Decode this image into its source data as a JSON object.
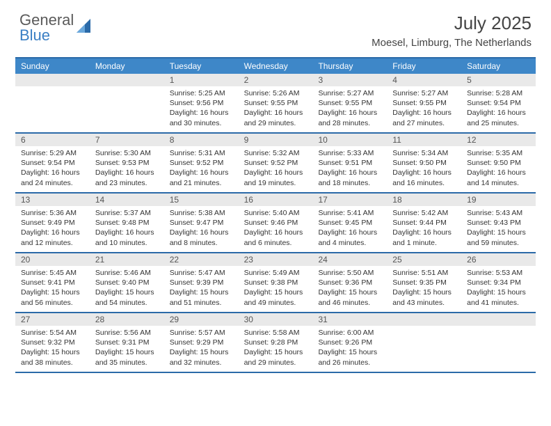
{
  "brand": {
    "word1": "General",
    "word2": "Blue"
  },
  "title": "July 2025",
  "location": "Moesel, Limburg, The Netherlands",
  "colors": {
    "header_bg": "#3e87c8",
    "header_text": "#ffffff",
    "border": "#2b6aa8",
    "daynum_bg": "#e9e9e9",
    "text": "#333333"
  },
  "day_names": [
    "Sunday",
    "Monday",
    "Tuesday",
    "Wednesday",
    "Thursday",
    "Friday",
    "Saturday"
  ],
  "weeks": [
    [
      null,
      null,
      {
        "n": "1",
        "sr": "5:25 AM",
        "ss": "9:56 PM",
        "d1": "16 hours",
        "d2": "and 30 minutes."
      },
      {
        "n": "2",
        "sr": "5:26 AM",
        "ss": "9:55 PM",
        "d1": "16 hours",
        "d2": "and 29 minutes."
      },
      {
        "n": "3",
        "sr": "5:27 AM",
        "ss": "9:55 PM",
        "d1": "16 hours",
        "d2": "and 28 minutes."
      },
      {
        "n": "4",
        "sr": "5:27 AM",
        "ss": "9:55 PM",
        "d1": "16 hours",
        "d2": "and 27 minutes."
      },
      {
        "n": "5",
        "sr": "5:28 AM",
        "ss": "9:54 PM",
        "d1": "16 hours",
        "d2": "and 25 minutes."
      }
    ],
    [
      {
        "n": "6",
        "sr": "5:29 AM",
        "ss": "9:54 PM",
        "d1": "16 hours",
        "d2": "and 24 minutes."
      },
      {
        "n": "7",
        "sr": "5:30 AM",
        "ss": "9:53 PM",
        "d1": "16 hours",
        "d2": "and 23 minutes."
      },
      {
        "n": "8",
        "sr": "5:31 AM",
        "ss": "9:52 PM",
        "d1": "16 hours",
        "d2": "and 21 minutes."
      },
      {
        "n": "9",
        "sr": "5:32 AM",
        "ss": "9:52 PM",
        "d1": "16 hours",
        "d2": "and 19 minutes."
      },
      {
        "n": "10",
        "sr": "5:33 AM",
        "ss": "9:51 PM",
        "d1": "16 hours",
        "d2": "and 18 minutes."
      },
      {
        "n": "11",
        "sr": "5:34 AM",
        "ss": "9:50 PM",
        "d1": "16 hours",
        "d2": "and 16 minutes."
      },
      {
        "n": "12",
        "sr": "5:35 AM",
        "ss": "9:50 PM",
        "d1": "16 hours",
        "d2": "and 14 minutes."
      }
    ],
    [
      {
        "n": "13",
        "sr": "5:36 AM",
        "ss": "9:49 PM",
        "d1": "16 hours",
        "d2": "and 12 minutes."
      },
      {
        "n": "14",
        "sr": "5:37 AM",
        "ss": "9:48 PM",
        "d1": "16 hours",
        "d2": "and 10 minutes."
      },
      {
        "n": "15",
        "sr": "5:38 AM",
        "ss": "9:47 PM",
        "d1": "16 hours",
        "d2": "and 8 minutes."
      },
      {
        "n": "16",
        "sr": "5:40 AM",
        "ss": "9:46 PM",
        "d1": "16 hours",
        "d2": "and 6 minutes."
      },
      {
        "n": "17",
        "sr": "5:41 AM",
        "ss": "9:45 PM",
        "d1": "16 hours",
        "d2": "and 4 minutes."
      },
      {
        "n": "18",
        "sr": "5:42 AM",
        "ss": "9:44 PM",
        "d1": "16 hours",
        "d2": "and 1 minute."
      },
      {
        "n": "19",
        "sr": "5:43 AM",
        "ss": "9:43 PM",
        "d1": "15 hours",
        "d2": "and 59 minutes."
      }
    ],
    [
      {
        "n": "20",
        "sr": "5:45 AM",
        "ss": "9:41 PM",
        "d1": "15 hours",
        "d2": "and 56 minutes."
      },
      {
        "n": "21",
        "sr": "5:46 AM",
        "ss": "9:40 PM",
        "d1": "15 hours",
        "d2": "and 54 minutes."
      },
      {
        "n": "22",
        "sr": "5:47 AM",
        "ss": "9:39 PM",
        "d1": "15 hours",
        "d2": "and 51 minutes."
      },
      {
        "n": "23",
        "sr": "5:49 AM",
        "ss": "9:38 PM",
        "d1": "15 hours",
        "d2": "and 49 minutes."
      },
      {
        "n": "24",
        "sr": "5:50 AM",
        "ss": "9:36 PM",
        "d1": "15 hours",
        "d2": "and 46 minutes."
      },
      {
        "n": "25",
        "sr": "5:51 AM",
        "ss": "9:35 PM",
        "d1": "15 hours",
        "d2": "and 43 minutes."
      },
      {
        "n": "26",
        "sr": "5:53 AM",
        "ss": "9:34 PM",
        "d1": "15 hours",
        "d2": "and 41 minutes."
      }
    ],
    [
      {
        "n": "27",
        "sr": "5:54 AM",
        "ss": "9:32 PM",
        "d1": "15 hours",
        "d2": "and 38 minutes."
      },
      {
        "n": "28",
        "sr": "5:56 AM",
        "ss": "9:31 PM",
        "d1": "15 hours",
        "d2": "and 35 minutes."
      },
      {
        "n": "29",
        "sr": "5:57 AM",
        "ss": "9:29 PM",
        "d1": "15 hours",
        "d2": "and 32 minutes."
      },
      {
        "n": "30",
        "sr": "5:58 AM",
        "ss": "9:28 PM",
        "d1": "15 hours",
        "d2": "and 29 minutes."
      },
      {
        "n": "31",
        "sr": "6:00 AM",
        "ss": "9:26 PM",
        "d1": "15 hours",
        "d2": "and 26 minutes."
      },
      null,
      null
    ]
  ],
  "labels": {
    "sunrise": "Sunrise: ",
    "sunset": "Sunset: ",
    "daylight": "Daylight: "
  }
}
